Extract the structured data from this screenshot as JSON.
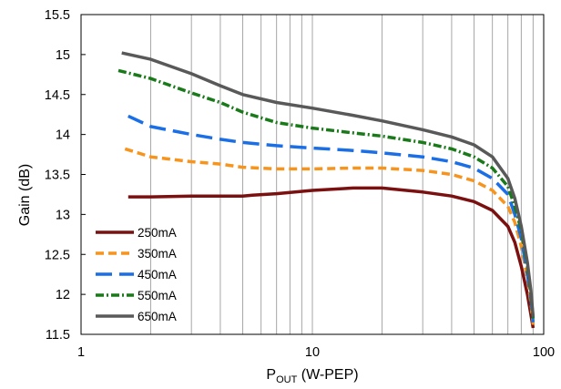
{
  "chart_data": {
    "type": "line",
    "title": "",
    "xlabel": {
      "main": "P",
      "sub": "OUT",
      "rest": " (W-PEP)"
    },
    "ylabel": "Gain (dB)",
    "x_scale": "log",
    "xlim": [
      1,
      100
    ],
    "ylim": [
      11.5,
      15.5
    ],
    "x_ticks": [
      "1",
      "10",
      "100"
    ],
    "y_ticks": [
      "11.5",
      "12",
      "12.5",
      "13",
      "13.5",
      "14",
      "14.5",
      "15",
      "15.5"
    ],
    "grid": "vertical",
    "legend_position": "bottom-left",
    "series": [
      {
        "name": "250mA",
        "color": "#7b1010",
        "dash": "solid",
        "x": [
          1.6,
          2,
          3,
          4,
          5,
          5.5,
          7,
          10,
          15,
          20,
          30,
          40,
          50,
          60,
          70,
          75,
          80,
          85,
          88,
          90
        ],
        "y": [
          13.22,
          13.22,
          13.23,
          13.23,
          13.23,
          13.24,
          13.26,
          13.3,
          13.33,
          13.33,
          13.28,
          13.23,
          13.16,
          13.05,
          12.85,
          12.65,
          12.35,
          12.0,
          11.75,
          11.58
        ]
      },
      {
        "name": "350mA",
        "color": "#f7941d",
        "dash": "dashed",
        "x": [
          1.55,
          2,
          3,
          4,
          5,
          7,
          10,
          15,
          20,
          30,
          40,
          50,
          60,
          70,
          75,
          80,
          85,
          88,
          90
        ],
        "y": [
          13.82,
          13.72,
          13.66,
          13.63,
          13.59,
          13.57,
          13.57,
          13.58,
          13.58,
          13.55,
          13.5,
          13.42,
          13.3,
          13.1,
          12.9,
          12.6,
          12.2,
          11.9,
          11.62
        ]
      },
      {
        "name": "450mA",
        "color": "#1a6ee6",
        "dash": "longdash",
        "x": [
          1.6,
          2,
          3,
          4,
          5,
          7,
          10,
          15,
          20,
          30,
          40,
          50,
          60,
          70,
          75,
          80,
          85,
          88,
          90
        ],
        "y": [
          14.23,
          14.1,
          14.0,
          13.94,
          13.9,
          13.86,
          13.83,
          13.8,
          13.77,
          13.72,
          13.66,
          13.58,
          13.45,
          13.25,
          13.0,
          12.7,
          12.25,
          11.95,
          11.65
        ]
      },
      {
        "name": "550mA",
        "color": "#1a7a1a",
        "dash": "dashdot",
        "x": [
          1.45,
          2,
          3,
          4,
          5,
          7,
          10,
          15,
          20,
          30,
          40,
          50,
          60,
          70,
          75,
          80,
          85,
          88,
          90
        ],
        "y": [
          14.8,
          14.7,
          14.52,
          14.4,
          14.28,
          14.15,
          14.08,
          14.02,
          13.98,
          13.9,
          13.82,
          13.72,
          13.58,
          13.35,
          13.1,
          12.8,
          12.35,
          12.0,
          11.7
        ]
      },
      {
        "name": "650mA",
        "color": "#595959",
        "dash": "solid",
        "x": [
          1.5,
          2,
          3,
          4,
          5,
          7,
          10,
          15,
          20,
          30,
          40,
          50,
          60,
          70,
          75,
          80,
          85,
          88,
          90
        ],
        "y": [
          15.02,
          14.94,
          14.76,
          14.61,
          14.5,
          14.4,
          14.33,
          14.24,
          14.17,
          14.06,
          13.97,
          13.87,
          13.72,
          13.45,
          13.2,
          12.85,
          12.4,
          12.05,
          11.72
        ]
      }
    ]
  }
}
